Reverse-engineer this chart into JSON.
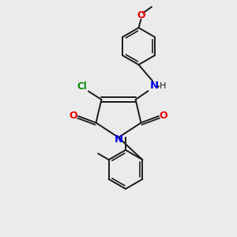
{
  "bg_color": "#ebebeb",
  "bond_color": "#1a1a1a",
  "bond_width": 1.4,
  "N_color": "#0000ee",
  "O_color": "#ee0000",
  "Cl_color": "#008800",
  "figsize": [
    3.0,
    3.0
  ],
  "dpi": 100,
  "xlim": [
    0,
    10
  ],
  "ylim": [
    0,
    10
  ]
}
